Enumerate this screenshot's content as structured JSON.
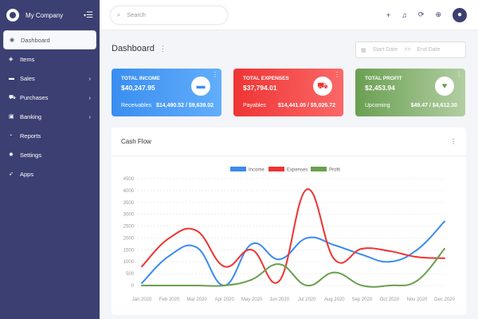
{
  "sidebar": {
    "company": "My Company",
    "items": [
      {
        "label": "Dashboard",
        "icon": "dashboard-icon",
        "chev": ""
      },
      {
        "label": "Items",
        "icon": "box-icon",
        "chev": ""
      },
      {
        "label": "Sales",
        "icon": "money-icon",
        "chev": "›"
      },
      {
        "label": "Purchases",
        "icon": "cart-icon",
        "chev": "›"
      },
      {
        "label": "Banking",
        "icon": "briefcase-icon",
        "chev": "›"
      },
      {
        "label": "Reports",
        "icon": "pie-chart-icon",
        "chev": ""
      },
      {
        "label": "Settings",
        "icon": "gear-icon",
        "chev": ""
      },
      {
        "label": "Apps",
        "icon": "rocket-icon",
        "chev": ""
      }
    ]
  },
  "topbar": {
    "search_placeholder": "Search"
  },
  "page": {
    "title": "Dashboard",
    "start_date": "Start Date",
    "sep": ">>",
    "end_date": "End Date"
  },
  "cards": [
    {
      "title": "TOTAL INCOME",
      "value": "$40,247.95",
      "sub_label": "Receivables",
      "sub_value": "$14,490.52 / $9,639.02",
      "color": "#3a8ef0"
    },
    {
      "title": "TOTAL EXPENSES",
      "value": "$37,794.01",
      "sub_label": "Payables",
      "sub_value": "$14,441.05 / $5,026.72",
      "color": "#ef3434"
    },
    {
      "title": "TOTAL PROFIT",
      "value": "$2,453.94",
      "sub_label": "Upcoming",
      "sub_value": "$49.47 / $4,612.30",
      "color": "#6a9f52"
    }
  ],
  "cashflow": {
    "title": "Cash Flow"
  },
  "chart_data": {
    "type": "line",
    "title": "Cash Flow",
    "xlabel": "",
    "ylabel": "",
    "ylim": [
      0,
      4500
    ],
    "yticks": [
      0,
      500,
      1000,
      1500,
      2000,
      2500,
      3000,
      3500,
      4000,
      4500
    ],
    "categories": [
      "Jan 2020",
      "Feb 2020",
      "Mar 2020",
      "Apr 2020",
      "May 2020",
      "Jun 2020",
      "Jul 2020",
      "Aug 2020",
      "Sep 2020",
      "Oct 2020",
      "Nov 2020",
      "Dec 2020"
    ],
    "legend": "top",
    "series": [
      {
        "name": "Income",
        "color": "#3b8bee",
        "values": [
          100,
          1250,
          1600,
          0,
          1750,
          1100,
          2000,
          1700,
          1300,
          1000,
          1500,
          2700
        ]
      },
      {
        "name": "Expenses",
        "color": "#ee3333",
        "values": [
          800,
          2000,
          2300,
          800,
          1500,
          200,
          4050,
          1100,
          1550,
          1450,
          1200,
          1150
        ]
      },
      {
        "name": "Profit",
        "color": "#6aa04f",
        "values": [
          0,
          0,
          0,
          0,
          250,
          900,
          0,
          550,
          0,
          0,
          200,
          1550
        ]
      }
    ]
  }
}
